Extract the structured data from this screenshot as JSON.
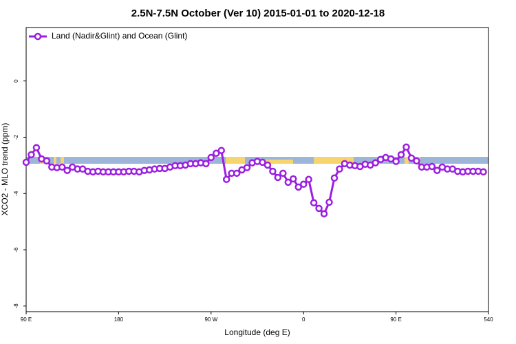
{
  "chart_data": {
    "type": "line",
    "title": "2.5N-7.5N October (Ver 10)   2015-01-01 to 2020-12-18",
    "xlabel": "Longitude (deg E)",
    "ylabel": "XCO2 - MLO trend (ppm)",
    "xlim": [
      90,
      540
    ],
    "xticks": [
      {
        "value": 90,
        "label": "90 E"
      },
      180,
      {
        "value": 270,
        "label": "90 W"
      },
      {
        "value": 360,
        "label": "0"
      },
      {
        "value": 450,
        "label": "90 E"
      },
      540
    ],
    "ylim": [
      -8.2,
      1.9
    ],
    "yticks": [
      0,
      -2,
      -4,
      -6,
      -8
    ],
    "legend": "top-left",
    "series": [
      {
        "name": "Land (Nadir&Glint) and Ocean (Glint)",
        "color": "#9b1fe0",
        "x": [
          90,
          95,
          100,
          105,
          110,
          115,
          120,
          125,
          130,
          135,
          140,
          145,
          150,
          155,
          160,
          165,
          170,
          175,
          180,
          185,
          190,
          195,
          200,
          205,
          210,
          215,
          220,
          225,
          230,
          235,
          240,
          245,
          250,
          255,
          260,
          265,
          270,
          275,
          280,
          285,
          290,
          295,
          300,
          305,
          310,
          315,
          320,
          325,
          330,
          335,
          340,
          345,
          350,
          355,
          360,
          365,
          370,
          375,
          380,
          385,
          390,
          395,
          400,
          405,
          410,
          415,
          420,
          425,
          430,
          435,
          440,
          445,
          450,
          455,
          460,
          465,
          470,
          475,
          480,
          485,
          490,
          495,
          500,
          505,
          510,
          515,
          520,
          525,
          530,
          535
        ],
        "values": [
          -2.89,
          -2.62,
          -2.37,
          -2.77,
          -2.84,
          -3.06,
          -3.08,
          -3.06,
          -3.18,
          -3.06,
          -3.13,
          -3.13,
          -3.21,
          -3.23,
          -3.21,
          -3.23,
          -3.23,
          -3.23,
          -3.23,
          -3.23,
          -3.21,
          -3.21,
          -3.23,
          -3.18,
          -3.16,
          -3.13,
          -3.11,
          -3.11,
          -3.06,
          -3.01,
          -3.01,
          -2.99,
          -2.94,
          -2.94,
          -2.91,
          -2.94,
          -2.72,
          -2.57,
          -2.47,
          -3.5,
          -3.28,
          -3.28,
          -3.16,
          -3.08,
          -2.91,
          -2.86,
          -2.89,
          -2.99,
          -3.21,
          -3.43,
          -3.28,
          -3.6,
          -3.48,
          -3.77,
          -3.67,
          -3.5,
          -4.33,
          -4.53,
          -4.72,
          -4.31,
          -3.45,
          -3.13,
          -2.94,
          -2.99,
          -3.01,
          -3.04,
          -2.96,
          -2.99,
          -2.91,
          -2.79,
          -2.72,
          -2.77,
          -2.86,
          -2.62,
          -2.35,
          -2.74,
          -2.84,
          -3.06,
          -3.06,
          -3.04,
          -3.18,
          -3.06,
          -3.13,
          -3.13,
          -3.21,
          -3.23,
          -3.21,
          -3.21,
          -3.21,
          -3.23
        ]
      }
    ]
  }
}
